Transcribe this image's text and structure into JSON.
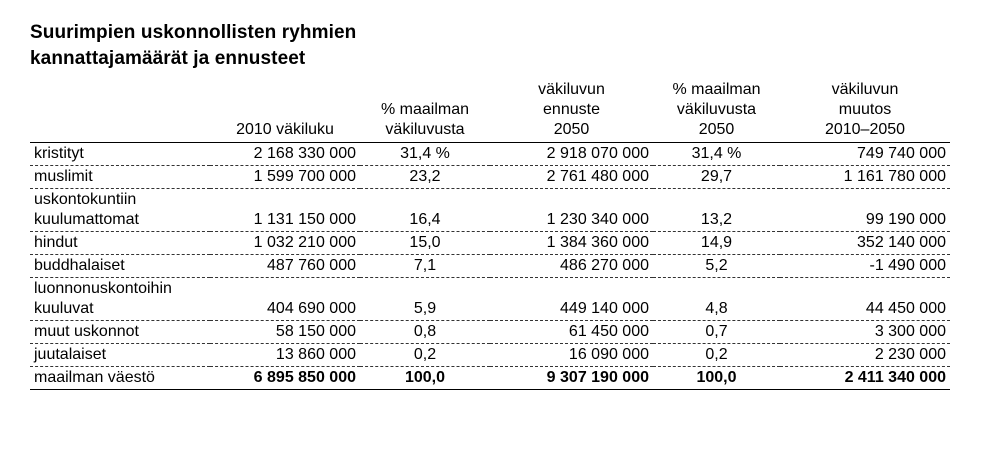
{
  "title": {
    "line1": "Suurimpien uskonnollisten ryhmien",
    "line2": "kannattajamäärät ja ennusteet"
  },
  "headers": [
    {
      "lines": [
        "",
        "",
        ""
      ]
    },
    {
      "lines": [
        "",
        "",
        "2010 väkiluku"
      ]
    },
    {
      "lines": [
        "",
        "% maailman",
        "väkiluvusta"
      ]
    },
    {
      "lines": [
        "väkiluvun",
        "ennuste",
        "2050"
      ]
    },
    {
      "lines": [
        "% maailman",
        "väkiluvusta",
        "2050"
      ]
    },
    {
      "lines": [
        "väkiluvun",
        "muutos",
        "2010–2050"
      ]
    }
  ],
  "rows": [
    {
      "name": [
        "kristityt"
      ],
      "pop2010": "2 168 330 000",
      "pct2010": "31,4 %",
      "pop2050": "2 918 070 000",
      "pct2050": "31,4 %",
      "change": "749 740 000"
    },
    {
      "name": [
        "muslimit"
      ],
      "pop2010": "1 599 700 000",
      "pct2010": "23,2",
      "pop2050": "2 761 480 000",
      "pct2050": "29,7",
      "change": "1 161 780 000"
    },
    {
      "name": [
        "uskontokuntiin",
        "kuulumattomat"
      ],
      "pop2010": "1 131 150 000",
      "pct2010": "16,4",
      "pop2050": "1 230 340 000",
      "pct2050": "13,2",
      "change": "99 190 000"
    },
    {
      "name": [
        "hindut"
      ],
      "pop2010": "1 032 210 000",
      "pct2010": "15,0",
      "pop2050": "1 384 360 000",
      "pct2050": "14,9",
      "change": "352 140 000"
    },
    {
      "name": [
        "buddhalaiset"
      ],
      "pop2010": "487 760 000",
      "pct2010": "7,1",
      "pop2050": "486 270 000",
      "pct2050": "5,2",
      "change": "-1 490 000"
    },
    {
      "name": [
        "luonnonuskontoihin",
        "kuuluvat"
      ],
      "pop2010": "404 690 000",
      "pct2010": "5,9",
      "pop2050": "449 140 000",
      "pct2050": "4,8",
      "change": "44 450 000"
    },
    {
      "name": [
        "muut uskonnot"
      ],
      "pop2010": "58 150 000",
      "pct2010": "0,8",
      "pop2050": "61 450 000",
      "pct2050": "0,7",
      "change": "3 300 000"
    },
    {
      "name": [
        "juutalaiset"
      ],
      "pop2010": "13 860 000",
      "pct2010": "0,2",
      "pop2050": "16 090 000",
      "pct2050": "0,2",
      "change": "2 230 000"
    }
  ],
  "total": {
    "name": "maailman väestö",
    "pop2010": "6 895 850 000",
    "pct2010": "100,0",
    "pop2050": "9 307 190 000",
    "pct2050": "100,0",
    "change": "2 411 340 000"
  }
}
